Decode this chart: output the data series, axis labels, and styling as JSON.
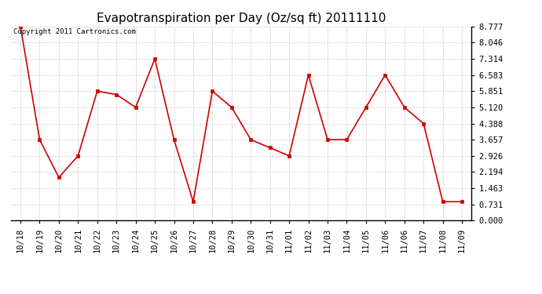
{
  "title": "Evapotranspiration per Day (Oz/sq ft) 20111110",
  "copyright_text": "Copyright 2011 Cartronics.com",
  "x_labels": [
    "10/18",
    "10/19",
    "10/20",
    "10/21",
    "10/22",
    "10/23",
    "10/24",
    "10/25",
    "10/26",
    "10/27",
    "10/28",
    "10/29",
    "10/30",
    "10/31",
    "11/01",
    "11/02",
    "11/03",
    "11/04",
    "11/05",
    "11/06",
    "11/06",
    "11/07",
    "11/08",
    "11/09"
  ],
  "y_values": [
    8.777,
    3.657,
    1.95,
    2.926,
    5.851,
    5.7,
    5.12,
    7.314,
    3.657,
    0.85,
    5.851,
    5.12,
    3.657,
    3.29,
    2.926,
    6.583,
    3.657,
    3.657,
    5.12,
    6.583,
    5.12,
    4.388,
    0.85,
    0.85
  ],
  "line_color": "#cc0000",
  "marker": "s",
  "marker_size": 2.5,
  "marker_color": "#cc0000",
  "bg_color": "#ffffff",
  "grid_color": "#cccccc",
  "y_ticks": [
    0.0,
    0.731,
    1.463,
    2.194,
    2.926,
    3.657,
    4.388,
    5.12,
    5.851,
    6.583,
    7.314,
    8.046,
    8.777
  ],
  "ylim": [
    0.0,
    8.777
  ],
  "title_fontsize": 11,
  "tick_fontsize": 7.5,
  "copyright_fontsize": 6.5
}
